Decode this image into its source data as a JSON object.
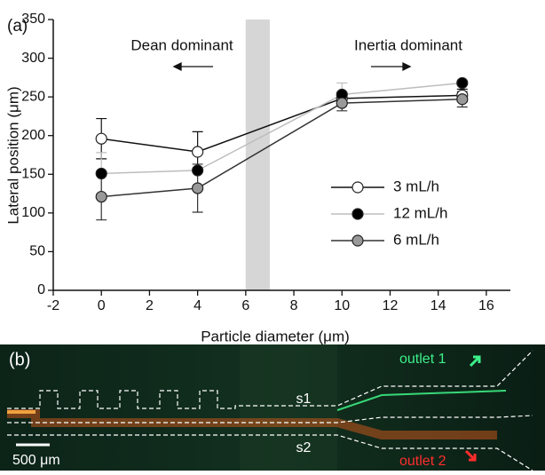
{
  "chart_data": {
    "type": "line",
    "panel_label": "(a)",
    "xlabel": "Particle diameter (μm)",
    "ylabel": "Lateral position (μm)",
    "xlim": [
      -2,
      17
    ],
    "ylim": [
      0,
      350
    ],
    "xticks": [
      -2,
      0,
      2,
      4,
      6,
      8,
      10,
      12,
      14,
      16
    ],
    "yticks": [
      0,
      50,
      100,
      150,
      200,
      250,
      300,
      350
    ],
    "band": [
      6,
      7
    ],
    "band_color": "#d6d6d6",
    "annotations": [
      "Dean dominant",
      "Inertia dominant"
    ],
    "legend": "center-right",
    "x": [
      0,
      4,
      10,
      15
    ],
    "series": [
      {
        "name": "3 mL/h",
        "color": "#111111",
        "marker_fill": "#ffffff",
        "values": [
          196,
          179,
          248,
          252
        ],
        "errors": [
          26,
          26,
          8,
          8
        ]
      },
      {
        "name": "12 mL/h",
        "color": "#bdbdbd",
        "marker_fill": "#000000",
        "values": [
          151,
          155,
          253,
          268
        ],
        "errors": [
          27,
          0,
          15,
          0
        ]
      },
      {
        "name": "6 mL/h",
        "color": "#333333",
        "marker_fill": "#999999",
        "values": [
          121,
          132,
          242,
          247
        ],
        "errors": [
          30,
          31,
          10,
          10
        ]
      }
    ]
  },
  "image": {
    "panel_label": "(b)",
    "s1": "s1",
    "s2": "s2",
    "outlet_1": "outlet 1",
    "outlet_2": "outlet 2",
    "scale_bar": "500 μm"
  }
}
